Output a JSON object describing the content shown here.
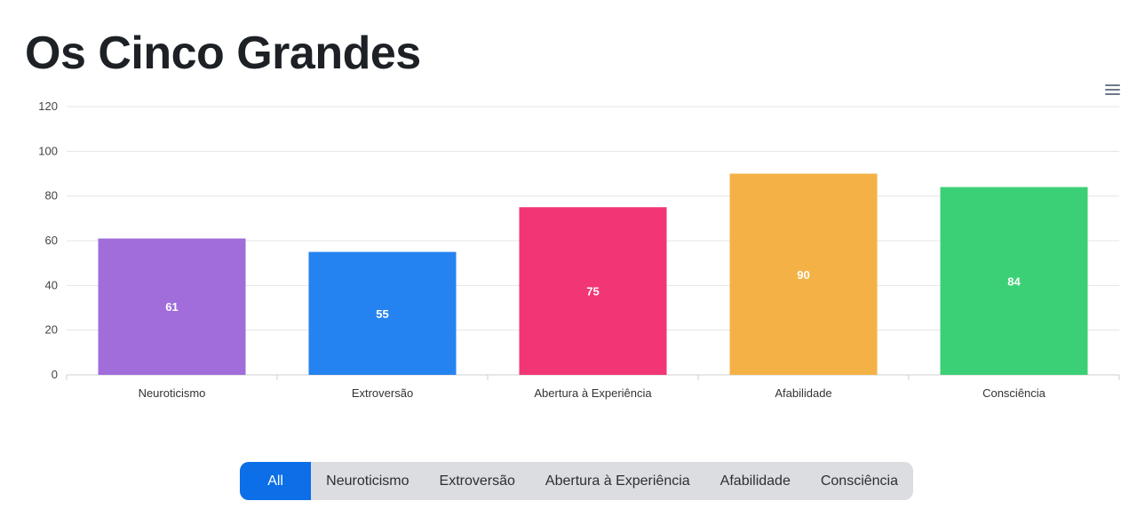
{
  "title": "Os Cinco Grandes",
  "menu_icon": "hamburger-menu-icon",
  "filters": {
    "active": "All",
    "buttons": [
      "All",
      "Neuroticismo",
      "Extroversão",
      "Abertura à Experiência",
      "Afabilidade",
      "Consciência"
    ]
  },
  "chart_data": {
    "type": "bar",
    "title": "",
    "xlabel": "",
    "ylabel": "",
    "categories": [
      "Neuroticismo",
      "Extroversão",
      "Abertura à Experiência",
      "Afabilidade",
      "Consciência"
    ],
    "values": [
      61,
      55,
      75,
      90,
      84
    ],
    "colors": [
      "#a06ddb",
      "#2483f0",
      "#f23575",
      "#f4b246",
      "#3bd075"
    ],
    "ylim": [
      0,
      120
    ],
    "yticks": [
      0,
      20,
      40,
      60,
      80,
      100,
      120
    ],
    "grid": true,
    "legend": "none"
  }
}
